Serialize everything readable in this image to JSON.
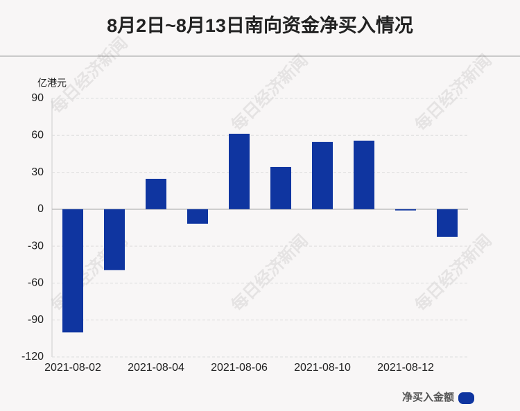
{
  "chart_data": {
    "type": "bar",
    "title": "8月2日~8月13日南向资金净买入情况",
    "y_axis_label": "亿港元",
    "watermark": "每日经济新闻",
    "categories": [
      "2021-08-02",
      null,
      "2021-08-04",
      null,
      "2021-08-06",
      null,
      "2021-08-10",
      null,
      "2021-08-12",
      null
    ],
    "series": [
      {
        "name": "净买入金额",
        "color": "#0f35a0",
        "values": [
          -100,
          -49.5,
          24.7,
          -11.8,
          61.3,
          34.3,
          54.6,
          55.7,
          -1,
          -22.5
        ]
      }
    ],
    "ylim": [
      -120,
      90
    ],
    "yticks": [
      -120,
      -90,
      -60,
      -30,
      0,
      30,
      60,
      90
    ],
    "grid": true
  }
}
